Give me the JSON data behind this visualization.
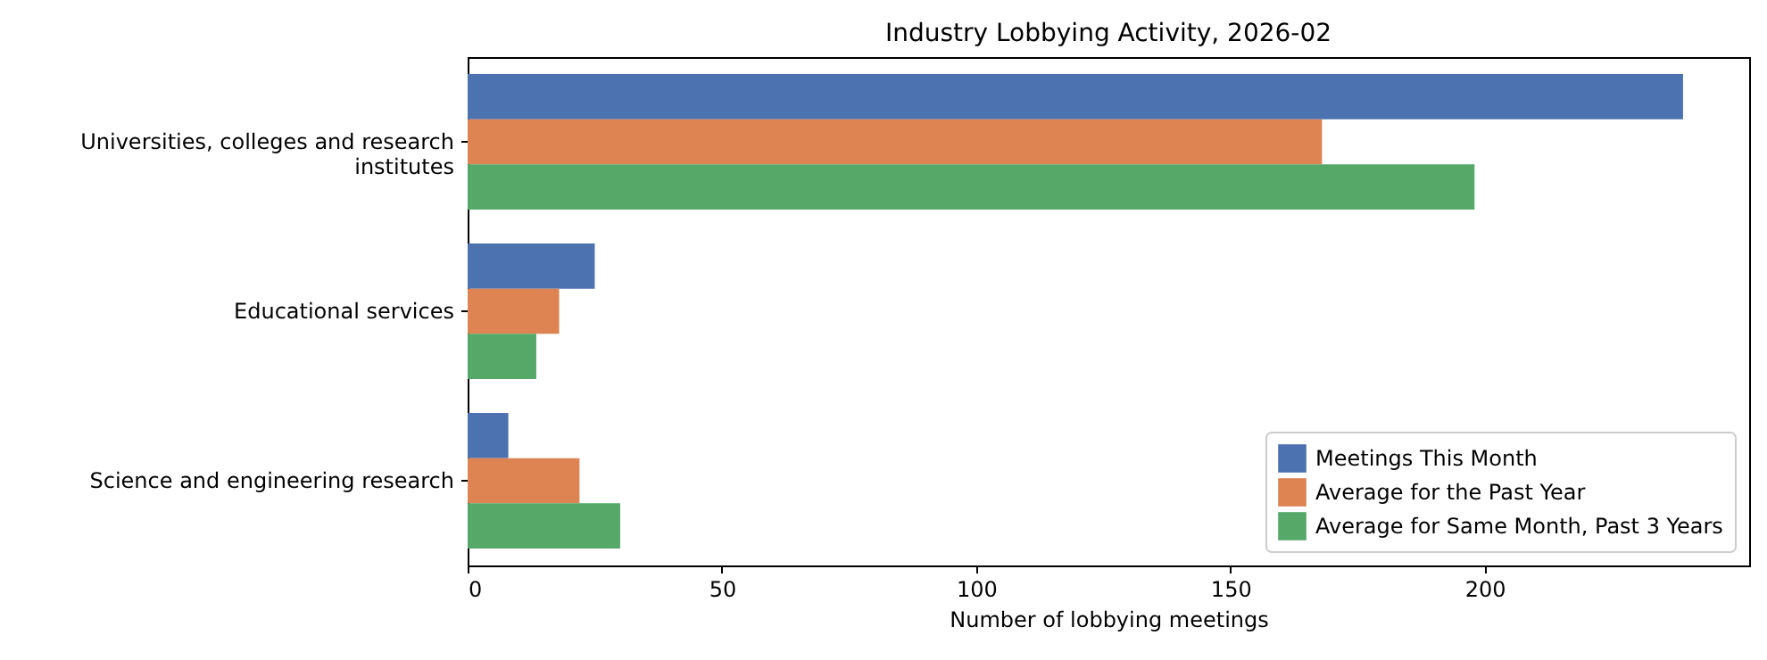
{
  "chart_data": {
    "type": "bar",
    "orientation": "horizontal",
    "title": "Industry Lobbying Activity, 2026-02",
    "xlabel": "Number of lobbying meetings",
    "categories": [
      "Universities, colleges and research institutes",
      "Educational services",
      "Science and engineering research"
    ],
    "series": [
      {
        "name": "Meetings This Month",
        "color": "#4c72b0",
        "values": [
          239,
          25,
          8
        ]
      },
      {
        "name": "Average for the Past Year",
        "color": "#dd8452",
        "values": [
          168,
          18,
          22
        ]
      },
      {
        "name": "Average for Same Month, Past 3 Years",
        "color": "#55a868",
        "values": [
          198,
          13.5,
          30
        ]
      }
    ],
    "xlim": [
      0,
      252
    ],
    "xticks": [
      0,
      50,
      100,
      150,
      200
    ],
    "grid": false,
    "legend": "bottom right"
  }
}
